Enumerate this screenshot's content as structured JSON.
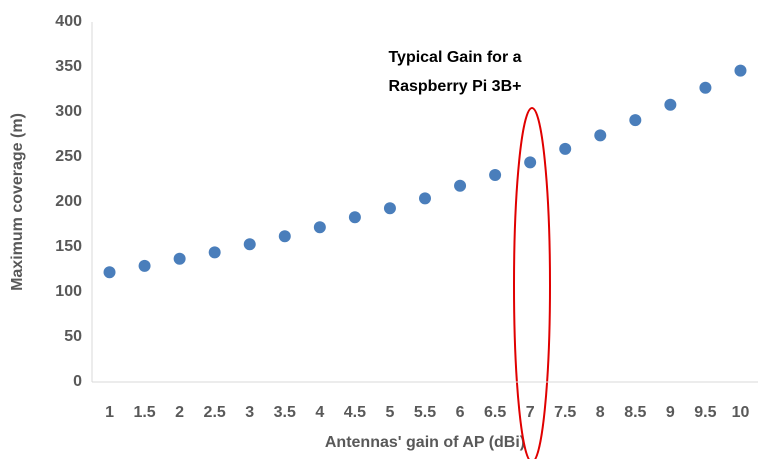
{
  "chart_data": {
    "type": "scatter",
    "x": [
      1,
      1.5,
      2,
      2.5,
      3,
      3.5,
      4,
      4.5,
      5,
      5.5,
      6,
      6.5,
      7,
      7.5,
      8,
      8.5,
      9,
      9.5,
      10
    ],
    "values": [
      122,
      129,
      137,
      144,
      153,
      162,
      172,
      183,
      193,
      204,
      218,
      230,
      244,
      259,
      274,
      291,
      308,
      327,
      346
    ],
    "color": "#4a7ebb",
    "xlabel": "Antennas' gain of AP (dBi)",
    "ylabel": "Maximum coverage (m)",
    "annotations": [
      "Typical Gain for a",
      "Raspberry Pi 3B+"
    ],
    "xlim": [
      0.75,
      10.25
    ],
    "xticks": [
      1,
      1.5,
      2,
      2.5,
      3,
      3.5,
      4,
      4.5,
      5,
      5.5,
      6,
      6.5,
      7,
      7.5,
      8,
      8.5,
      9,
      9.5,
      10
    ],
    "ylim": [
      0,
      400
    ],
    "yticks": [
      0,
      50,
      100,
      150,
      200,
      250,
      300,
      350,
      400
    ],
    "grid": false
  }
}
